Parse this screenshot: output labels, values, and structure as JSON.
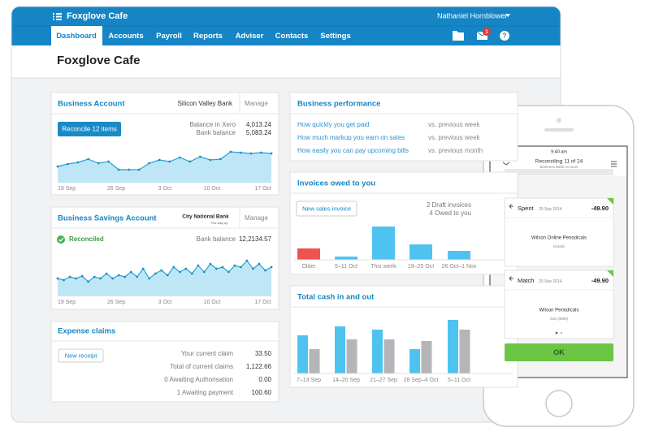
{
  "app": {
    "name": "Foxglove Cafe",
    "user": "Nathaniel Hornblower",
    "nav": [
      "Dashboard",
      "Accounts",
      "Payroll",
      "Reports",
      "Adviser",
      "Contacts",
      "Settings"
    ],
    "badge": "1"
  },
  "page_title": "Foxglove Cafe",
  "business_account": {
    "title": "Business Account",
    "bank": "Silicon Valley Bank",
    "manage": "Manage",
    "button": "Reconcile 12 items",
    "rows": [
      {
        "label": "Balance in Xero",
        "value": "4,013.24"
      },
      {
        "label": "Bank balance",
        "value": "5,083.24"
      }
    ],
    "chart": {
      "type": "area",
      "x_labels": [
        "19 Sep",
        "26 Sep",
        "3 Oct",
        "10 Oct",
        "17 Oct"
      ],
      "values": [
        20,
        23,
        25,
        29,
        24,
        26,
        16,
        16,
        16,
        24,
        28,
        26,
        31,
        26,
        32,
        28,
        29,
        38,
        37,
        36,
        37,
        36
      ]
    }
  },
  "savings_account": {
    "title": "Business Savings Account",
    "bank": "City National Bank",
    "bank_tagline": "The way up",
    "manage": "Manage",
    "status": "Reconciled",
    "rows": [
      {
        "label": "Bank balance",
        "value": "12,2134.57"
      }
    ],
    "chart": {
      "type": "area",
      "x_labels": [
        "19 Sep",
        "26 Sep",
        "3 Oct",
        "10 Oct",
        "17 Oct"
      ],
      "values": [
        22,
        20,
        24,
        22,
        25,
        18,
        24,
        22,
        28,
        22,
        26,
        24,
        30,
        24,
        34,
        22,
        28,
        32,
        26,
        36,
        30,
        34,
        28,
        38,
        30,
        40,
        34,
        36,
        30,
        38,
        36,
        44,
        34,
        40,
        32,
        36
      ]
    }
  },
  "expense_claims": {
    "title": "Expense claims",
    "button": "New receipt",
    "rows": [
      {
        "label": "Your current claim",
        "value": "33.50"
      },
      {
        "label": "Total of current claims",
        "value": "1,122.66"
      },
      {
        "label": "0 Awaiting Authorisation",
        "value": "0.00"
      },
      {
        "label": "1 Awaiting payment",
        "value": "100.60"
      }
    ]
  },
  "business_performance": {
    "title": "Business performance",
    "rows": [
      {
        "label": "How quickly you get paid",
        "compare": "vs. previous week"
      },
      {
        "label": "How much markup you earn on sales",
        "compare": "vs. previous week"
      },
      {
        "label": "How easily you can pay upcoming bills",
        "compare": "vs. previous month"
      }
    ]
  },
  "invoices": {
    "title": "Invoices owed to you",
    "button": "New sales invoice",
    "notes": [
      "2 Draft invoices",
      "4 Owed to you"
    ],
    "chart": {
      "type": "bar",
      "categories": [
        "Older",
        "5–11 Oct",
        "This week",
        "19–25 Oct",
        "26 Oct–1 Nov"
      ],
      "values": [
        14,
        4,
        41,
        19,
        11
      ],
      "colors": [
        "#ef5350",
        "#4fc3f0",
        "#4fc3f0",
        "#4fc3f0",
        "#4fc3f0"
      ]
    }
  },
  "cash": {
    "title": "Total cash in and out",
    "chart": {
      "type": "grouped_bar",
      "categories": [
        "7–13 Sep",
        "14–20 Sep",
        "21–27 Sep",
        "28 Sep–4 Oct",
        "5–11 Oct"
      ],
      "series": [
        {
          "color": "#4fc3f0",
          "values": [
            47,
            58,
            54,
            30,
            66
          ]
        },
        {
          "color": "#b3b5b8",
          "values": [
            30,
            42,
            42,
            40,
            54
          ]
        }
      ]
    }
  },
  "phone": {
    "time": "9:40 am",
    "title": "Reconciling 11 of 24",
    "subtitle": "Business Bank Account",
    "cards": [
      {
        "action": "Spent",
        "date": "29 Sep 2014",
        "amount": "-49.90",
        "payee": "Wilson Online Periodicals",
        "detail": "Details"
      },
      {
        "action": "Match",
        "date": "29 Sep 2014",
        "amount": "-49.90",
        "payee": "Wilson Periodicals",
        "detail": "Sub (IM80)"
      }
    ],
    "button": "OK"
  }
}
